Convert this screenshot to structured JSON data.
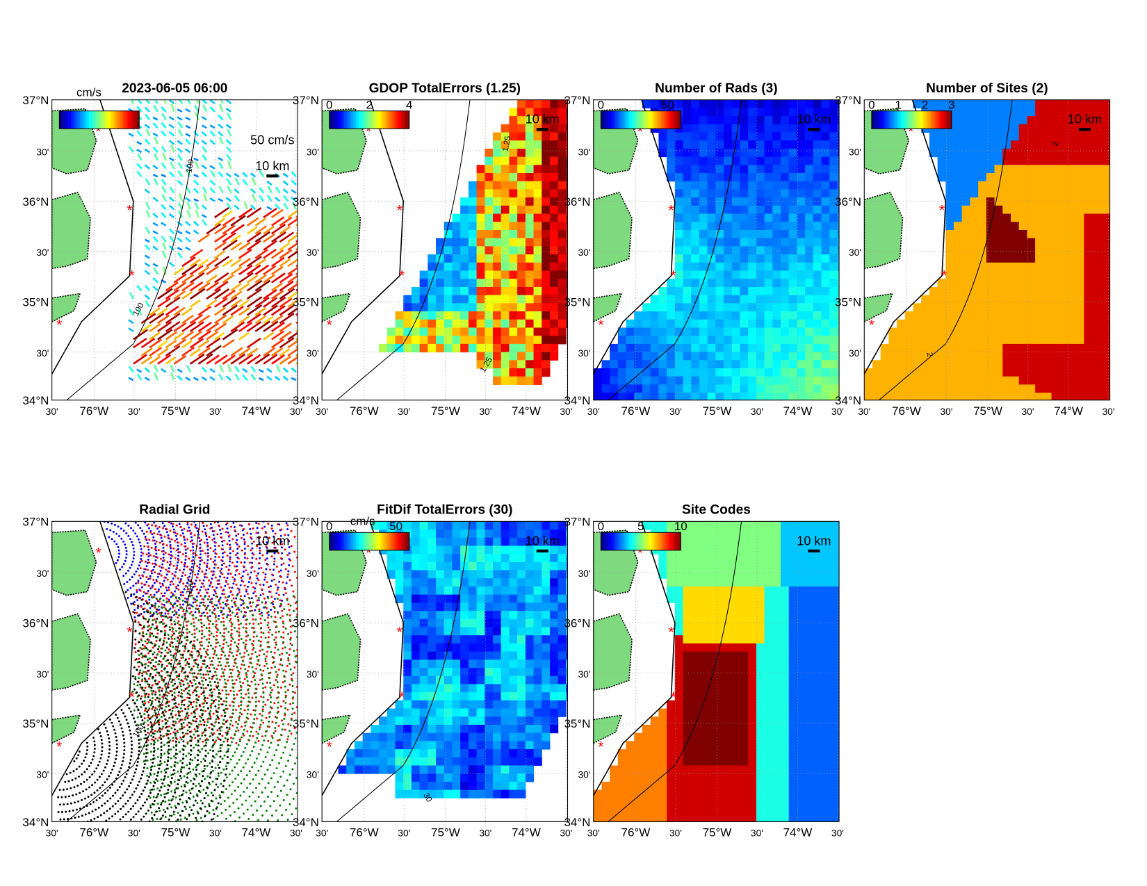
{
  "lat_ticks": [
    "37°N",
    "30'",
    "36°N",
    "30'",
    "35°N",
    "30'",
    "34°N"
  ],
  "lon_ticks": [
    "30'",
    "76°W",
    "30'",
    "75°W",
    "30'",
    "74°W",
    "30'"
  ],
  "panels": [
    {
      "title": "2023-06-05 06:00",
      "unit": "cm/s",
      "reference": "50 cm/s",
      "scale": "10 km",
      "contour": "100"
    },
    {
      "title": "GDOP TotalErrors (1.25)",
      "colorbar_ticks": [
        "0",
        "2",
        "4"
      ],
      "scale": "10 km",
      "contour": "1.25"
    },
    {
      "title": "Number of Rads (3)",
      "colorbar_ticks": [
        "0",
        "50"
      ],
      "scale": "10 km"
    },
    {
      "title": "Number of Sites (2)",
      "colorbar_ticks": [
        "0",
        "1",
        "2",
        "3"
      ],
      "scale": "10 km",
      "contour": "2"
    },
    {
      "title": "Radial Grid",
      "scale": "10 km",
      "contour": "100"
    },
    {
      "title": "FitDif TotalErrors (30)",
      "unit": "cm/s",
      "colorbar_ticks": [
        "0",
        "50"
      ],
      "scale": "10 km",
      "contour": "30"
    },
    {
      "title": "Site Codes",
      "colorbar_ticks": [
        "0",
        "5",
        "10"
      ],
      "scale": "10 km"
    }
  ]
}
